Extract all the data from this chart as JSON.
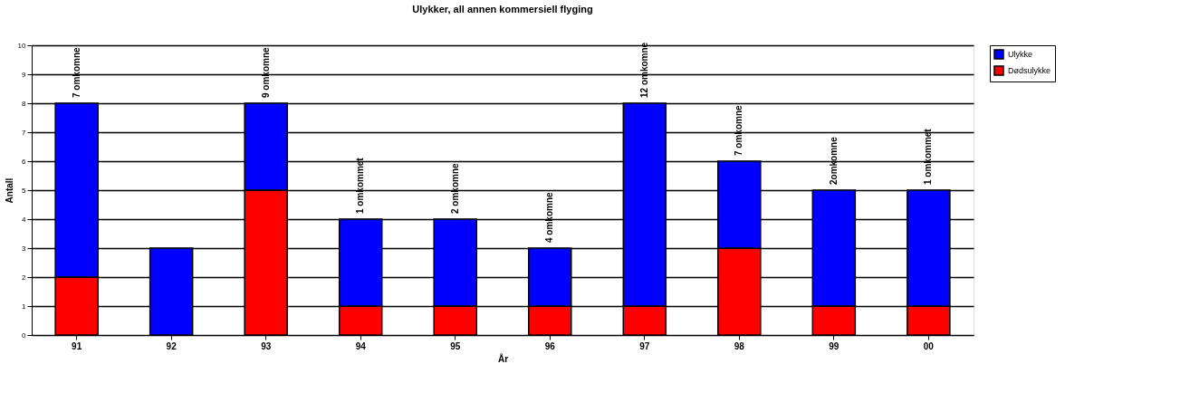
{
  "chart_data": {
    "type": "bar",
    "title": "Ulykker, all annen kommersiell flyging",
    "xlabel": "År",
    "ylabel": "Antall",
    "categories": [
      "91",
      "92",
      "93",
      "94",
      "95",
      "96",
      "97",
      "98",
      "99",
      "00"
    ],
    "stacked": true,
    "series": [
      {
        "name": "Dødsulykke",
        "color": "#ff0000",
        "values": [
          2,
          0,
          5,
          1,
          1,
          1,
          1,
          3,
          1,
          1
        ]
      },
      {
        "name": "Ulykke",
        "color": "#0000ff",
        "values": [
          6,
          3,
          3,
          3,
          3,
          2,
          7,
          3,
          4,
          4
        ]
      }
    ],
    "ylim": [
      0,
      10
    ],
    "yticks": [
      0,
      1,
      2,
      3,
      4,
      5,
      6,
      7,
      8,
      9,
      10
    ],
    "grid": "y",
    "legend": "right",
    "annotations": [
      {
        "text": "7 omkomne",
        "x": "91",
        "y": 8
      },
      {
        "text": "9 omkomne",
        "x": "93",
        "y": 8
      },
      {
        "text": "1 omkommet",
        "x": "94",
        "y": 4
      },
      {
        "text": "2 omkomne",
        "x": "95",
        "y": 4
      },
      {
        "text": "4 omkomne",
        "x": "96",
        "y": 3
      },
      {
        "text": "12 omkomne",
        "x": "97",
        "y": 8
      },
      {
        "text": "7 omkomne",
        "x": "98",
        "y": 6
      },
      {
        "text": "2omkomne",
        "x": "99",
        "y": 5
      },
      {
        "text": "1 omkommet",
        "x": "00",
        "y": 5
      }
    ]
  }
}
